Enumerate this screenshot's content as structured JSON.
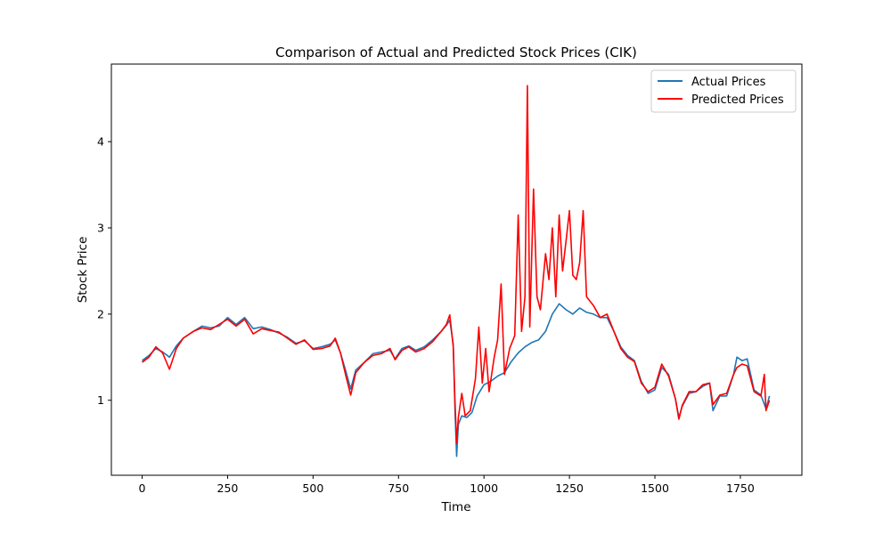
{
  "chart_data": {
    "type": "line",
    "title": "Comparison of Actual and Predicted Stock Prices (CIK)",
    "xlabel": "Time",
    "ylabel": "Stock Price",
    "xlim": [
      -90,
      1930
    ],
    "ylim": [
      0.13,
      4.9
    ],
    "x_ticks": [
      0,
      250,
      500,
      750,
      1000,
      1250,
      1500,
      1750
    ],
    "y_ticks": [
      1,
      2,
      3,
      4
    ],
    "grid": false,
    "legend_position": "top-right",
    "series": [
      {
        "name": "Actual Prices",
        "color": "#1f77b4",
        "points": [
          [
            0,
            1.46
          ],
          [
            20,
            1.52
          ],
          [
            40,
            1.6
          ],
          [
            60,
            1.56
          ],
          [
            80,
            1.5
          ],
          [
            100,
            1.63
          ],
          [
            120,
            1.72
          ],
          [
            150,
            1.8
          ],
          [
            175,
            1.86
          ],
          [
            200,
            1.84
          ],
          [
            225,
            1.86
          ],
          [
            250,
            1.96
          ],
          [
            275,
            1.88
          ],
          [
            300,
            1.96
          ],
          [
            325,
            1.83
          ],
          [
            350,
            1.85
          ],
          [
            375,
            1.82
          ],
          [
            400,
            1.78
          ],
          [
            425,
            1.73
          ],
          [
            450,
            1.66
          ],
          [
            475,
            1.69
          ],
          [
            500,
            1.6
          ],
          [
            525,
            1.62
          ],
          [
            550,
            1.65
          ],
          [
            565,
            1.7
          ],
          [
            580,
            1.55
          ],
          [
            595,
            1.35
          ],
          [
            610,
            1.13
          ],
          [
            625,
            1.35
          ],
          [
            650,
            1.44
          ],
          [
            675,
            1.54
          ],
          [
            700,
            1.56
          ],
          [
            725,
            1.58
          ],
          [
            740,
            1.48
          ],
          [
            760,
            1.6
          ],
          [
            780,
            1.63
          ],
          [
            800,
            1.58
          ],
          [
            825,
            1.62
          ],
          [
            850,
            1.7
          ],
          [
            875,
            1.8
          ],
          [
            890,
            1.87
          ],
          [
            900,
            1.93
          ],
          [
            910,
            1.65
          ],
          [
            915,
            0.9
          ],
          [
            920,
            0.35
          ],
          [
            925,
            0.72
          ],
          [
            935,
            0.82
          ],
          [
            950,
            0.8
          ],
          [
            965,
            0.86
          ],
          [
            980,
            1.05
          ],
          [
            1000,
            1.18
          ],
          [
            1020,
            1.22
          ],
          [
            1040,
            1.28
          ],
          [
            1060,
            1.32
          ],
          [
            1080,
            1.45
          ],
          [
            1100,
            1.55
          ],
          [
            1120,
            1.62
          ],
          [
            1140,
            1.67
          ],
          [
            1160,
            1.7
          ],
          [
            1180,
            1.8
          ],
          [
            1200,
            2.0
          ],
          [
            1220,
            2.12
          ],
          [
            1240,
            2.05
          ],
          [
            1260,
            2.0
          ],
          [
            1280,
            2.07
          ],
          [
            1300,
            2.02
          ],
          [
            1320,
            2.0
          ],
          [
            1340,
            1.96
          ],
          [
            1360,
            1.96
          ],
          [
            1380,
            1.8
          ],
          [
            1400,
            1.62
          ],
          [
            1420,
            1.52
          ],
          [
            1440,
            1.46
          ],
          [
            1460,
            1.22
          ],
          [
            1480,
            1.08
          ],
          [
            1500,
            1.12
          ],
          [
            1520,
            1.38
          ],
          [
            1540,
            1.3
          ],
          [
            1560,
            1.02
          ],
          [
            1570,
            0.8
          ],
          [
            1580,
            0.93
          ],
          [
            1600,
            1.08
          ],
          [
            1620,
            1.1
          ],
          [
            1640,
            1.16
          ],
          [
            1660,
            1.2
          ],
          [
            1670,
            0.88
          ],
          [
            1690,
            1.05
          ],
          [
            1710,
            1.05
          ],
          [
            1730,
            1.3
          ],
          [
            1740,
            1.5
          ],
          [
            1755,
            1.46
          ],
          [
            1770,
            1.48
          ],
          [
            1790,
            1.12
          ],
          [
            1810,
            1.06
          ],
          [
            1825,
            0.9
          ],
          [
            1835,
            1.05
          ]
        ]
      },
      {
        "name": "Predicted Prices",
        "color": "#ff0000",
        "points": [
          [
            0,
            1.44
          ],
          [
            20,
            1.5
          ],
          [
            40,
            1.62
          ],
          [
            60,
            1.55
          ],
          [
            80,
            1.36
          ],
          [
            100,
            1.6
          ],
          [
            120,
            1.72
          ],
          [
            150,
            1.8
          ],
          [
            175,
            1.84
          ],
          [
            200,
            1.82
          ],
          [
            225,
            1.88
          ],
          [
            250,
            1.94
          ],
          [
            275,
            1.86
          ],
          [
            300,
            1.94
          ],
          [
            325,
            1.77
          ],
          [
            350,
            1.83
          ],
          [
            375,
            1.81
          ],
          [
            400,
            1.79
          ],
          [
            425,
            1.72
          ],
          [
            450,
            1.65
          ],
          [
            475,
            1.7
          ],
          [
            500,
            1.59
          ],
          [
            525,
            1.6
          ],
          [
            550,
            1.63
          ],
          [
            565,
            1.72
          ],
          [
            580,
            1.55
          ],
          [
            595,
            1.3
          ],
          [
            610,
            1.06
          ],
          [
            625,
            1.32
          ],
          [
            650,
            1.44
          ],
          [
            675,
            1.52
          ],
          [
            700,
            1.54
          ],
          [
            725,
            1.6
          ],
          [
            740,
            1.47
          ],
          [
            760,
            1.58
          ],
          [
            780,
            1.62
          ],
          [
            800,
            1.56
          ],
          [
            825,
            1.6
          ],
          [
            850,
            1.68
          ],
          [
            875,
            1.8
          ],
          [
            890,
            1.88
          ],
          [
            900,
            1.99
          ],
          [
            910,
            1.62
          ],
          [
            915,
            1.0
          ],
          [
            920,
            0.5
          ],
          [
            925,
            0.8
          ],
          [
            935,
            1.08
          ],
          [
            945,
            0.82
          ],
          [
            960,
            0.88
          ],
          [
            975,
            1.25
          ],
          [
            985,
            1.85
          ],
          [
            995,
            1.2
          ],
          [
            1005,
            1.6
          ],
          [
            1015,
            1.1
          ],
          [
            1030,
            1.5
          ],
          [
            1040,
            1.7
          ],
          [
            1050,
            2.35
          ],
          [
            1060,
            1.3
          ],
          [
            1075,
            1.6
          ],
          [
            1090,
            1.75
          ],
          [
            1100,
            3.15
          ],
          [
            1110,
            1.8
          ],
          [
            1120,
            2.2
          ],
          [
            1127,
            4.65
          ],
          [
            1134,
            1.85
          ],
          [
            1145,
            3.45
          ],
          [
            1155,
            2.2
          ],
          [
            1165,
            2.05
          ],
          [
            1180,
            2.7
          ],
          [
            1190,
            2.4
          ],
          [
            1200,
            3.0
          ],
          [
            1210,
            2.2
          ],
          [
            1220,
            3.15
          ],
          [
            1230,
            2.5
          ],
          [
            1240,
            2.85
          ],
          [
            1250,
            3.2
          ],
          [
            1260,
            2.45
          ],
          [
            1270,
            2.4
          ],
          [
            1280,
            2.6
          ],
          [
            1290,
            3.2
          ],
          [
            1300,
            2.2
          ],
          [
            1320,
            2.1
          ],
          [
            1340,
            1.96
          ],
          [
            1360,
            2.0
          ],
          [
            1380,
            1.8
          ],
          [
            1400,
            1.6
          ],
          [
            1420,
            1.5
          ],
          [
            1440,
            1.45
          ],
          [
            1460,
            1.2
          ],
          [
            1480,
            1.1
          ],
          [
            1500,
            1.15
          ],
          [
            1520,
            1.42
          ],
          [
            1540,
            1.28
          ],
          [
            1560,
            1.02
          ],
          [
            1570,
            0.78
          ],
          [
            1580,
            0.94
          ],
          [
            1600,
            1.1
          ],
          [
            1620,
            1.1
          ],
          [
            1640,
            1.18
          ],
          [
            1660,
            1.2
          ],
          [
            1670,
            0.95
          ],
          [
            1690,
            1.06
          ],
          [
            1710,
            1.08
          ],
          [
            1730,
            1.3
          ],
          [
            1740,
            1.38
          ],
          [
            1755,
            1.42
          ],
          [
            1770,
            1.4
          ],
          [
            1790,
            1.1
          ],
          [
            1810,
            1.05
          ],
          [
            1820,
            1.3
          ],
          [
            1825,
            0.88
          ],
          [
            1835,
            1.0
          ]
        ]
      }
    ]
  }
}
